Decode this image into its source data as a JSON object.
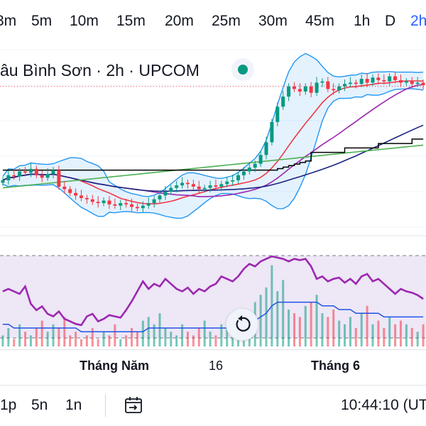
{
  "timeframes": [
    {
      "label": "3m",
      "active": false
    },
    {
      "label": "5m",
      "active": false
    },
    {
      "label": "10m",
      "active": false
    },
    {
      "label": "15m",
      "active": false
    },
    {
      "label": "20m",
      "active": false
    },
    {
      "label": "25m",
      "active": false
    },
    {
      "label": "30m",
      "active": false
    },
    {
      "label": "45m",
      "active": false
    },
    {
      "label": "1h",
      "active": false
    },
    {
      "label": "D",
      "active": false
    },
    {
      "label": "2h",
      "active": true
    }
  ],
  "legend": {
    "title": "âu Bình Sơn · 2h · UPCOM",
    "status": "market-open",
    "status_color": "#089981"
  },
  "time_axis": {
    "labels": [
      "Tháng Năm",
      "16",
      "Tháng 6"
    ]
  },
  "bottom_bar": {
    "ranges": [
      "1p",
      "5n",
      "1n"
    ],
    "goto_icon": "calendar-goto-icon",
    "clock": "10:44:10 (UT"
  },
  "colors": {
    "up": "#089981",
    "down": "#f23645",
    "bollinger": "#2196f3",
    "bollinger_fill": "#2196f3",
    "ma_red": "#f23645",
    "ma_purple": "#9c27b0",
    "ma_navy": "#1a237e",
    "ma_green": "#4caf50",
    "ma_black": "#000000",
    "rsi": "#9c27b0",
    "rsi_band": "#7e57c2",
    "volume_ma": "#1e53e5",
    "accent": "#2962ff"
  },
  "chart_data": [
    {
      "type": "candlestick",
      "title": "",
      "indicators": [
        "Bollinger Bands",
        "MA (red)",
        "MA (purple)",
        "MA (navy)",
        "MA (green)",
        "Stepped MA (black)",
        "price line (dotted red)"
      ],
      "close": [
        25.2,
        25.6,
        25.5,
        25.9,
        25.8,
        26.1,
        25.6,
        25.4,
        25.7,
        26.0,
        24.7,
        24.5,
        24.2,
        24.0,
        23.8,
        23.7,
        23.5,
        23.4,
        23.6,
        23.3,
        23.2,
        23.4,
        23.3,
        23.1,
        23.0,
        23.2,
        23.4,
        23.7,
        24.0,
        24.3,
        24.6,
        24.8,
        25.0,
        24.9,
        24.7,
        24.5,
        24.6,
        24.8,
        24.7,
        24.9,
        25.1,
        25.2,
        25.6,
        25.9,
        26.2,
        26.5,
        27.2,
        28.2,
        29.8,
        31.0,
        31.8,
        32.6,
        32.4,
        32.2,
        32.6,
        32.1,
        32.9,
        33.0,
        32.4,
        32.3,
        32.6,
        32.8,
        32.9,
        32.8,
        33.2,
        32.9,
        33.3,
        33.1,
        33.0,
        33.4,
        33.1,
        32.9,
        33.0,
        32.8,
        32.9,
        32.7
      ],
      "legend": "none",
      "grid": false
    },
    {
      "type": "line",
      "title": "",
      "rsi": [
        60,
        62,
        60,
        58,
        64,
        50,
        45,
        48,
        42,
        40,
        44,
        38,
        36,
        34,
        33,
        40,
        42,
        36,
        38,
        41,
        40,
        39,
        45,
        52,
        60,
        68,
        62,
        66,
        64,
        70,
        66,
        62,
        60,
        63,
        58,
        62,
        60,
        64,
        66,
        72,
        70,
        68,
        72,
        78,
        82,
        80,
        84,
        86,
        88,
        87,
        86,
        84,
        86,
        85,
        86,
        80,
        70,
        72,
        68,
        70,
        71,
        67,
        70,
        66,
        72,
        74,
        68,
        70,
        66,
        62,
        58,
        62,
        60,
        59,
        57,
        54
      ],
      "ylim": [
        0,
        100
      ],
      "legend": "none"
    },
    {
      "type": "bar",
      "title": "",
      "volume": [
        3,
        5,
        2,
        6,
        4,
        3,
        5,
        7,
        4,
        6,
        5,
        8,
        3,
        4,
        2,
        3,
        5,
        2,
        4,
        3,
        6,
        2,
        3,
        5,
        4,
        7,
        8,
        6,
        9,
        5,
        4,
        3,
        6,
        4,
        3,
        5,
        7,
        4,
        3,
        6,
        5,
        8,
        6,
        9,
        7,
        12,
        14,
        16,
        22,
        15,
        18,
        10,
        9,
        8,
        11,
        12,
        14,
        9,
        8,
        10,
        7,
        6,
        8,
        5,
        9,
        11,
        6,
        7,
        5,
        8,
        6,
        7,
        6,
        5,
        4,
        6
      ],
      "volume_ma": [
        6,
        6,
        5,
        5,
        5,
        5,
        5,
        5,
        5,
        5,
        5,
        5,
        5,
        5,
        4,
        4,
        4,
        4,
        4,
        4,
        4,
        4,
        4,
        4,
        4,
        4,
        5,
        5,
        5,
        5,
        5,
        5,
        5,
        5,
        5,
        5,
        5,
        5,
        5,
        5,
        5,
        5,
        5,
        6,
        6,
        7,
        8,
        9,
        11,
        12,
        12,
        12,
        12,
        12,
        12,
        12,
        12,
        11,
        11,
        11,
        10,
        10,
        10,
        9,
        9,
        9,
        9,
        9,
        8,
        8,
        8,
        8,
        8,
        8,
        8,
        8
      ],
      "legend": "none"
    }
  ]
}
